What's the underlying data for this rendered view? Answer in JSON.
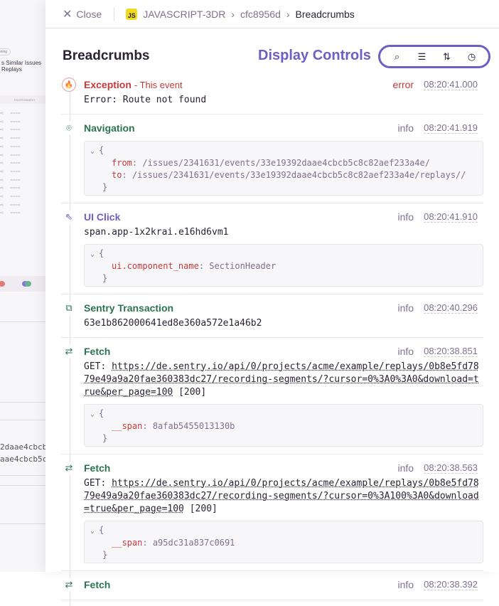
{
  "background": {
    "pill": "ngoing",
    "tabs": "s  Similar Issues  Replays",
    "col_header": "ENVIRONMENT",
    "row_value": "••••••••••",
    "mono_lines": [
      "2daae4cbcb",
      "aae4cbcb5c"
    ]
  },
  "topbar": {
    "close_label": "Close",
    "project_badge": "JS",
    "crumbs": [
      "JAVASCRIPT-3DR",
      "cfc8956d",
      "Breadcrumbs"
    ]
  },
  "title": "Breadcrumbs",
  "display_controls": {
    "label": "Display Controls",
    "icons": [
      "search-icon",
      "filter-icon",
      "sort-icon",
      "clock-icon"
    ]
  },
  "colors": {
    "error": "#c53a3a",
    "green": "#2b7352",
    "purple": "#6b5fc6"
  },
  "items": [
    {
      "type": "Exception",
      "sub": "- This event",
      "level": "error",
      "time": "08:20:41.000",
      "message": "Error: Route not found"
    },
    {
      "type": "Navigation",
      "level": "info",
      "time": "08:20:41.919",
      "data": [
        {
          "key": "from",
          "value": "/issues/2341631/events/33e19392daae4cbcb5c8c82aef233a4e/"
        },
        {
          "key": "to",
          "value": "/issues/2341631/events/33e19392daae4cbcb5c8c82aef233a4e/replays//"
        }
      ]
    },
    {
      "type": "UI Click",
      "level": "info",
      "time": "08:20:41.910",
      "message": "span.app-1x2krai.e16hd6vm1",
      "data": [
        {
          "key": "ui.component_name",
          "value": "SectionHeader"
        }
      ]
    },
    {
      "type": "Sentry Transaction",
      "level": "info",
      "time": "08:20:40.296",
      "message": "63e1b862000641ed8e360a572e1a46b2"
    },
    {
      "type": "Fetch",
      "level": "info",
      "time": "08:20:38.851",
      "method": "GET:",
      "url": "https://de.sentry.io/api/0/projects/acme/example/replays/0b8e5fd7879e49a9a20fae360383dc27/recording-segments/?cursor=0%3A0%3A0&download=true&per_page=100",
      "status": "[200]",
      "data": [
        {
          "key": "__span",
          "value": "8afab5455013130b"
        }
      ]
    },
    {
      "type": "Fetch",
      "level": "info",
      "time": "08:20:38.563",
      "method": "GET:",
      "url": "https://de.sentry.io/api/0/projects/acme/example/replays/0b8e5fd7879e49a9a20fae360383dc27/recording-segments/?cursor=0%3A100%3A0&download=true&per_page=100",
      "status": "[200]",
      "data": [
        {
          "key": "__span",
          "value": "a95dc31a837c0691"
        }
      ]
    },
    {
      "type": "Fetch",
      "level": "info",
      "time": "08:20:38.392"
    }
  ]
}
